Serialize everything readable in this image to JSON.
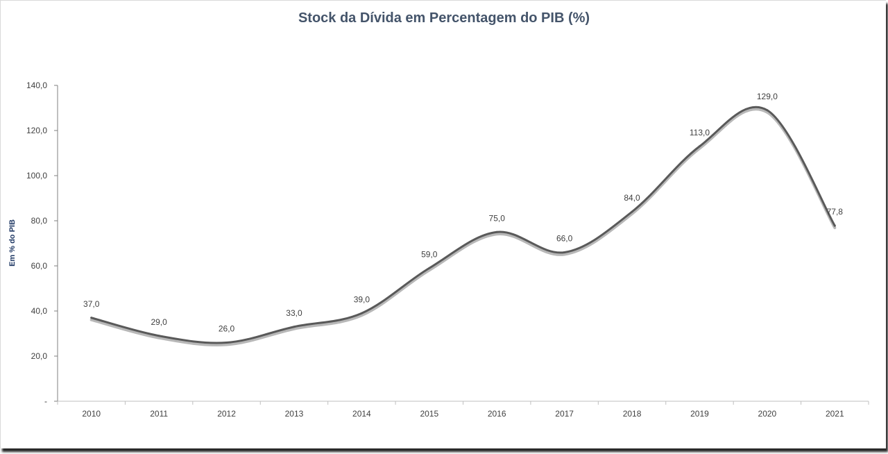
{
  "chart_data": {
    "type": "line",
    "title": "Stock da Dívida em Percentagem do PIB (%)",
    "ylabel": "Em % do PIB",
    "xlabel": "",
    "categories": [
      "2010",
      "2011",
      "2012",
      "2013",
      "2014",
      "2015",
      "2016",
      "2017",
      "2018",
      "2019",
      "2020",
      "2021"
    ],
    "values": [
      37.0,
      29.0,
      26.0,
      33.0,
      39.0,
      59.0,
      75.0,
      66.0,
      84.0,
      113.0,
      129.0,
      77.8
    ],
    "data_labels": [
      "37,0",
      "29,0",
      "26,0",
      "33,0",
      "39,0",
      "59,0",
      "75,0",
      "66,0",
      "84,0",
      "113,0",
      "129,0",
      "77,8"
    ],
    "ylim": [
      0,
      140
    ],
    "yticks": [
      0,
      20,
      40,
      60,
      80,
      100,
      120,
      140
    ],
    "ytick_labels": [
      "-",
      "20,0",
      "40,0",
      "60,0",
      "80,0",
      "100,0",
      "120,0",
      "140,0"
    ],
    "grid": false,
    "legend": "none",
    "line_style": "smoothed",
    "colors": {
      "line": "#595959",
      "shadow": "#a6a6a6",
      "axis": "#7f7f7f",
      "text": "#404040",
      "title": "#44546a",
      "ylabel": "#1f3864"
    }
  }
}
